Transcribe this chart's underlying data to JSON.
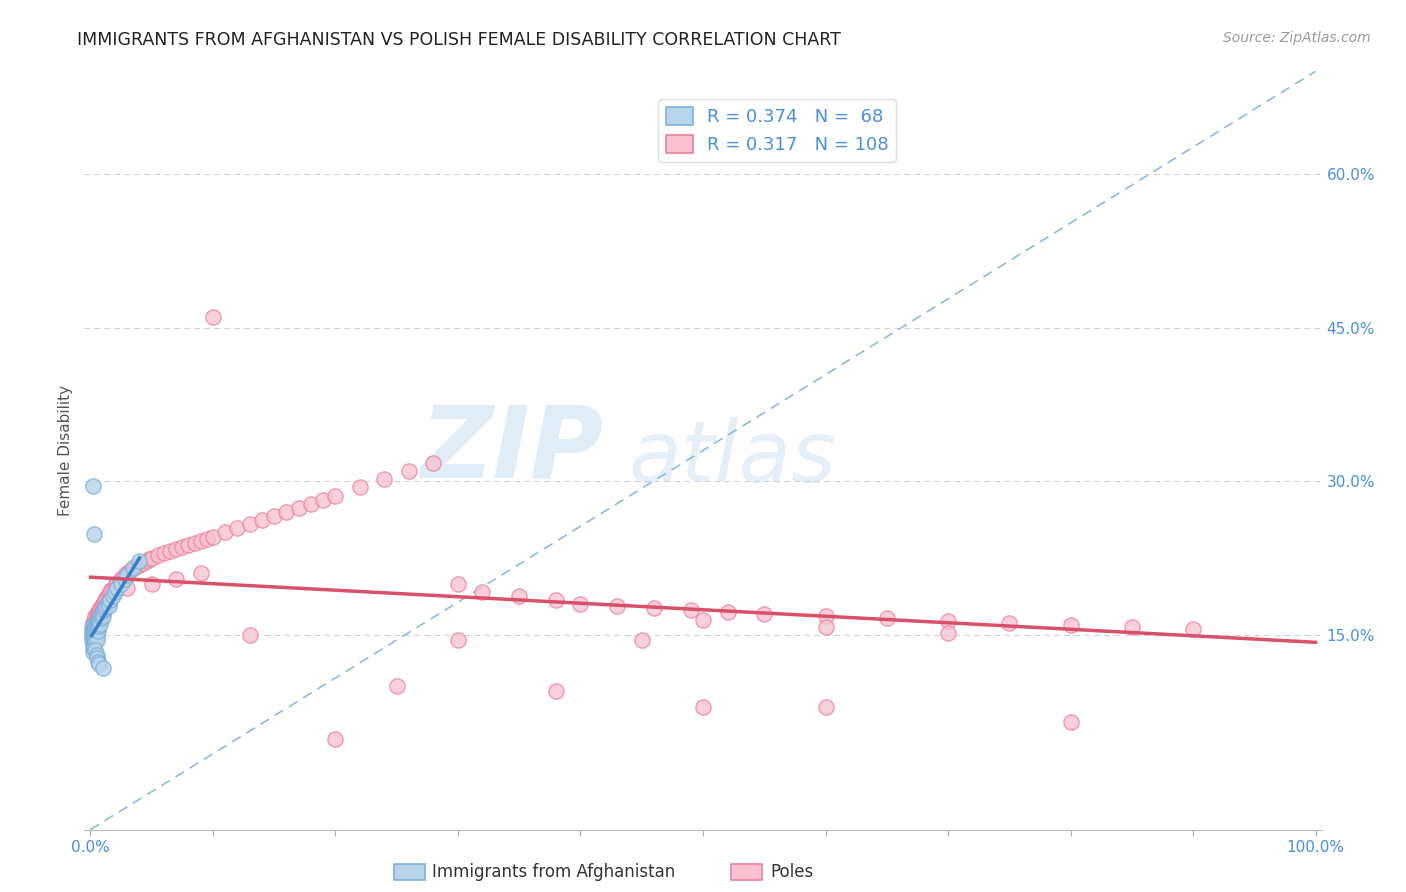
{
  "title": "IMMIGRANTS FROM AFGHANISTAN VS POLISH FEMALE DISABILITY CORRELATION CHART",
  "source": "Source: ZipAtlas.com",
  "ylabel": "Female Disability",
  "xlim": [
    -0.005,
    1.005
  ],
  "ylim": [
    -0.04,
    0.7
  ],
  "xticks": [
    0.0,
    0.1,
    0.2,
    0.3,
    0.4,
    0.5,
    0.6,
    0.7,
    0.8,
    0.9,
    1.0
  ],
  "xticklabels": [
    "0.0%",
    "",
    "",
    "",
    "",
    "",
    "",
    "",
    "",
    "",
    "100.0%"
  ],
  "ytick_positions": [
    0.0,
    0.15,
    0.3,
    0.45,
    0.6
  ],
  "ytick_labels": [
    "",
    "15.0%",
    "30.0%",
    "45.0%",
    "60.0%"
  ],
  "legend_label1": "Immigrants from Afghanistan",
  "legend_label2": "Poles",
  "color_afghanistan_fill": "#b8d4ea",
  "color_afghanistan_edge": "#7fb0d8",
  "color_poles_fill": "#f8c0d0",
  "color_poles_edge": "#e8809a",
  "color_trendline_afghanistan": "#3a7ec8",
  "color_trendline_poles": "#d8506a",
  "color_diagonal": "#90b8e0",
  "watermark_zip": "ZIP",
  "watermark_atlas": "atlas",
  "background_color": "#ffffff",
  "afghanistan_x": [
    0.001,
    0.001,
    0.001,
    0.002,
    0.002,
    0.002,
    0.002,
    0.002,
    0.002,
    0.002,
    0.002,
    0.003,
    0.003,
    0.003,
    0.003,
    0.003,
    0.003,
    0.003,
    0.003,
    0.004,
    0.004,
    0.004,
    0.004,
    0.004,
    0.004,
    0.005,
    0.005,
    0.005,
    0.005,
    0.005,
    0.005,
    0.006,
    0.006,
    0.006,
    0.006,
    0.007,
    0.007,
    0.007,
    0.008,
    0.008,
    0.008,
    0.009,
    0.009,
    0.01,
    0.01,
    0.011,
    0.012,
    0.013,
    0.014,
    0.015,
    0.015,
    0.016,
    0.018,
    0.02,
    0.022,
    0.025,
    0.028,
    0.03,
    0.035,
    0.04,
    0.002,
    0.003,
    0.004,
    0.005,
    0.005,
    0.006,
    0.007,
    0.01
  ],
  "afghanistan_y": [
    0.155,
    0.15,
    0.145,
    0.16,
    0.155,
    0.152,
    0.148,
    0.143,
    0.14,
    0.137,
    0.133,
    0.158,
    0.155,
    0.152,
    0.149,
    0.146,
    0.143,
    0.14,
    0.137,
    0.16,
    0.157,
    0.154,
    0.151,
    0.148,
    0.144,
    0.162,
    0.159,
    0.156,
    0.152,
    0.149,
    0.145,
    0.164,
    0.161,
    0.158,
    0.154,
    0.166,
    0.163,
    0.159,
    0.168,
    0.165,
    0.161,
    0.17,
    0.166,
    0.172,
    0.168,
    0.174,
    0.176,
    0.178,
    0.18,
    0.182,
    0.178,
    0.184,
    0.188,
    0.192,
    0.196,
    0.2,
    0.205,
    0.208,
    0.215,
    0.222,
    0.295,
    0.248,
    0.135,
    0.13,
    0.127,
    0.124,
    0.122,
    0.118
  ],
  "poles_x": [
    0.001,
    0.001,
    0.002,
    0.002,
    0.002,
    0.003,
    0.003,
    0.003,
    0.003,
    0.004,
    0.004,
    0.004,
    0.005,
    0.005,
    0.005,
    0.006,
    0.006,
    0.007,
    0.007,
    0.008,
    0.008,
    0.009,
    0.009,
    0.01,
    0.01,
    0.011,
    0.012,
    0.012,
    0.013,
    0.014,
    0.015,
    0.016,
    0.017,
    0.018,
    0.02,
    0.021,
    0.022,
    0.024,
    0.025,
    0.027,
    0.03,
    0.032,
    0.034,
    0.036,
    0.038,
    0.04,
    0.043,
    0.046,
    0.048,
    0.05,
    0.055,
    0.06,
    0.065,
    0.07,
    0.075,
    0.08,
    0.085,
    0.09,
    0.095,
    0.1,
    0.11,
    0.12,
    0.13,
    0.14,
    0.15,
    0.16,
    0.17,
    0.18,
    0.19,
    0.2,
    0.22,
    0.24,
    0.26,
    0.28,
    0.3,
    0.32,
    0.35,
    0.38,
    0.4,
    0.43,
    0.46,
    0.49,
    0.52,
    0.55,
    0.6,
    0.65,
    0.7,
    0.75,
    0.8,
    0.85,
    0.9,
    0.5,
    0.6,
    0.7,
    0.03,
    0.05,
    0.07,
    0.09,
    0.5,
    0.3,
    0.45,
    0.13,
    0.25,
    0.38,
    0.6,
    0.8,
    0.1,
    0.2
  ],
  "poles_y": [
    0.158,
    0.148,
    0.162,
    0.155,
    0.148,
    0.165,
    0.158,
    0.152,
    0.145,
    0.168,
    0.162,
    0.155,
    0.17,
    0.164,
    0.158,
    0.172,
    0.166,
    0.174,
    0.168,
    0.176,
    0.17,
    0.178,
    0.172,
    0.18,
    0.174,
    0.182,
    0.184,
    0.178,
    0.186,
    0.188,
    0.19,
    0.192,
    0.194,
    0.195,
    0.198,
    0.2,
    0.201,
    0.203,
    0.205,
    0.207,
    0.21,
    0.212,
    0.214,
    0.216,
    0.217,
    0.218,
    0.22,
    0.222,
    0.224,
    0.225,
    0.228,
    0.23,
    0.232,
    0.234,
    0.236,
    0.238,
    0.24,
    0.242,
    0.244,
    0.246,
    0.25,
    0.254,
    0.258,
    0.262,
    0.266,
    0.27,
    0.274,
    0.278,
    0.282,
    0.286,
    0.294,
    0.302,
    0.31,
    0.318,
    0.2,
    0.192,
    0.188,
    0.184,
    0.18,
    0.178,
    0.176,
    0.174,
    0.172,
    0.17,
    0.168,
    0.166,
    0.164,
    0.162,
    0.16,
    0.158,
    0.156,
    0.165,
    0.158,
    0.152,
    0.196,
    0.2,
    0.205,
    0.21,
    0.08,
    0.145,
    0.145,
    0.15,
    0.1,
    0.095,
    0.08,
    0.065,
    0.46,
    0.048
  ]
}
